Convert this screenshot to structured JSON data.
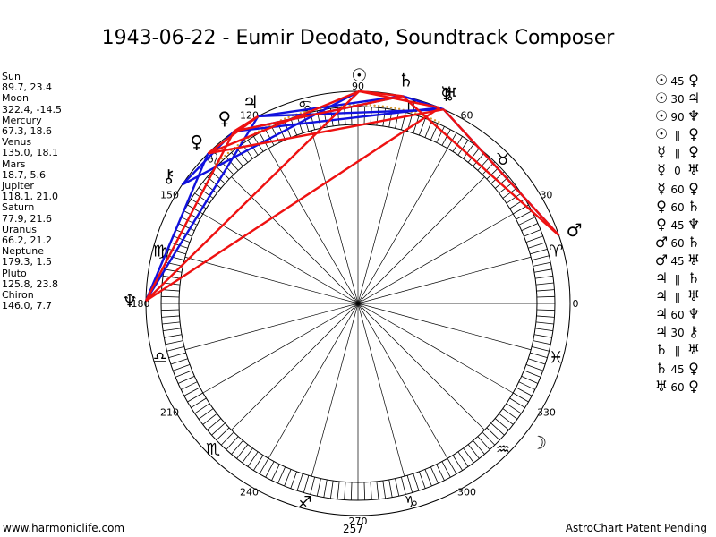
{
  "title": "1943-06-22 - Eumir Deodato, Soundtrack Composer",
  "positions": [
    {
      "name": "Sun",
      "value": "89.7, 23.4"
    },
    {
      "name": "Moon",
      "value": "322.4, -14.5"
    },
    {
      "name": "Mercury",
      "value": "67.3, 18.6"
    },
    {
      "name": "Venus",
      "value": "135.0, 18.1"
    },
    {
      "name": "Mars",
      "value": "18.7, 5.6"
    },
    {
      "name": "Jupiter",
      "value": "118.1, 21.0"
    },
    {
      "name": "Saturn",
      "value": "77.9, 21.6"
    },
    {
      "name": "Uranus",
      "value": "66.2, 21.2"
    },
    {
      "name": "Neptune",
      "value": "179.3, 1.5"
    },
    {
      "name": "Pluto",
      "value": "125.8, 23.8"
    },
    {
      "name": "Chiron",
      "value": "146.0, 7.7"
    }
  ],
  "aspects": [
    {
      "p1": "☉",
      "aspect": "45",
      "p2": "♀"
    },
    {
      "p1": "☉",
      "aspect": "30",
      "p2": "♃"
    },
    {
      "p1": "☉",
      "aspect": "90",
      "p2": "♆"
    },
    {
      "p1": "☉",
      "aspect": "ǁ",
      "p2": "♀"
    },
    {
      "p1": "☿",
      "aspect": "ǁ",
      "p2": "♀"
    },
    {
      "p1": "☿",
      "aspect": "0",
      "p2": "♅"
    },
    {
      "p1": "☿",
      "aspect": "60",
      "p2": "♀"
    },
    {
      "p1": "♀",
      "aspect": "60",
      "p2": "♄"
    },
    {
      "p1": "♀",
      "aspect": "45",
      "p2": "♆"
    },
    {
      "p1": "♂",
      "aspect": "60",
      "p2": "♄"
    },
    {
      "p1": "♂",
      "aspect": "45",
      "p2": "♅"
    },
    {
      "p1": "♃",
      "aspect": "ǁ",
      "p2": "♄"
    },
    {
      "p1": "♃",
      "aspect": "ǁ",
      "p2": "♅"
    },
    {
      "p1": "♃",
      "aspect": "60",
      "p2": "♆"
    },
    {
      "p1": "♃",
      "aspect": "30",
      "p2": "⚷"
    },
    {
      "p1": "♄",
      "aspect": "ǁ",
      "p2": "♅"
    },
    {
      "p1": "♄",
      "aspect": "45",
      "p2": "♀"
    },
    {
      "p1": "♅",
      "aspect": "60",
      "p2": "♀"
    }
  ],
  "degree_labels": [
    "0",
    "30",
    "60",
    "90",
    "120",
    "150",
    "180",
    "210",
    "240",
    "270",
    "300",
    "330"
  ],
  "sign_glyphs": [
    {
      "sign": "aries",
      "glyph": "♈"
    },
    {
      "sign": "taurus",
      "glyph": "♉"
    },
    {
      "sign": "gemini",
      "glyph": "♊"
    },
    {
      "sign": "cancer",
      "glyph": "♋"
    },
    {
      "sign": "leo",
      "glyph": "♌"
    },
    {
      "sign": "virgo",
      "glyph": "♍"
    },
    {
      "sign": "libra",
      "glyph": "♎"
    },
    {
      "sign": "scorpio",
      "glyph": "♏"
    },
    {
      "sign": "sagittarius",
      "glyph": "♐"
    },
    {
      "sign": "capricorn",
      "glyph": "♑"
    },
    {
      "sign": "aquarius",
      "glyph": "♒"
    },
    {
      "sign": "pisces",
      "glyph": "♓"
    }
  ],
  "planet_glyphs": [
    {
      "name": "sun",
      "glyph": "☉",
      "lon": 89.7
    },
    {
      "name": "moon",
      "glyph": "☽",
      "lon": 322.4
    },
    {
      "name": "mercury",
      "glyph": "☿",
      "lon": 67.3
    },
    {
      "name": "venus",
      "glyph": "♀",
      "lon": 135.0
    },
    {
      "name": "mars",
      "glyph": "♂",
      "lon": 18.7
    },
    {
      "name": "jupiter",
      "glyph": "♃",
      "lon": 118.1
    },
    {
      "name": "saturn",
      "glyph": "♄",
      "lon": 77.9
    },
    {
      "name": "uranus",
      "glyph": "♅",
      "lon": 66.2
    },
    {
      "name": "neptune",
      "glyph": "♆",
      "lon": 179.3
    },
    {
      "name": "pluto",
      "glyph": "♀",
      "lon": 125.8
    },
    {
      "name": "chiron",
      "glyph": "⚷",
      "lon": 146.0
    }
  ],
  "asc_value": "257",
  "footer_left": "www.harmoniclife.com",
  "footer_right": "AstroChart Patent Pending",
  "colors": {
    "red_line": "#ee1111",
    "blue_line": "#1111dd",
    "orange_dots": "#d99a2a"
  }
}
